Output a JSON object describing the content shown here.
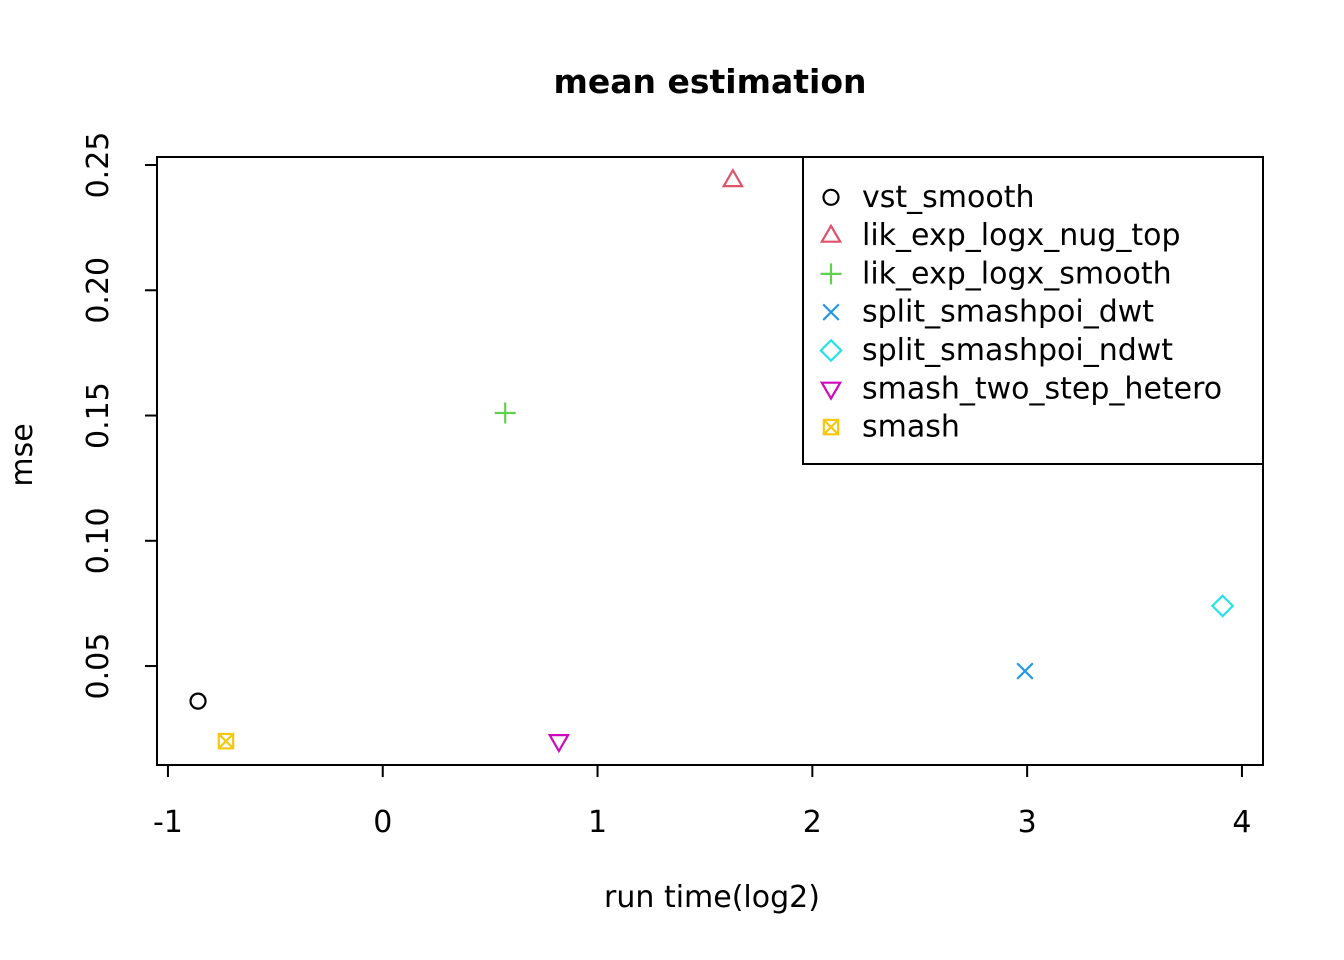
{
  "chart_data": {
    "type": "scatter",
    "title": "mean estimation",
    "xlabel": "run time(log2)",
    "ylabel": "mse",
    "xlim": [
      -1.051,
      4.098
    ],
    "ylim": [
      0.0105,
      0.2532
    ],
    "x_ticks": [
      -1,
      0,
      1,
      2,
      3,
      4
    ],
    "x_tick_labels": [
      "-1",
      "0",
      "1",
      "2",
      "3",
      "4"
    ],
    "y_ticks": [
      0.05,
      0.1,
      0.15,
      0.2,
      0.25
    ],
    "y_tick_labels": [
      "0.05",
      "0.10",
      "0.15",
      "0.20",
      "0.25"
    ],
    "grid": false,
    "legend_position": "top-right",
    "frame_color": "#000000",
    "background_color": "#ffffff",
    "series": [
      {
        "name": "vst_smooth",
        "marker": "circle",
        "color": "#000000",
        "points": [
          {
            "x": -0.86,
            "y": 0.036
          }
        ]
      },
      {
        "name": "lik_exp_logx_nug_top",
        "marker": "triangle-up",
        "color": "#DF536B",
        "points": [
          {
            "x": 1.63,
            "y": 0.244
          }
        ]
      },
      {
        "name": "lik_exp_logx_smooth",
        "marker": "plus",
        "color": "#61D04F",
        "points": [
          {
            "x": 0.57,
            "y": 0.151
          }
        ]
      },
      {
        "name": "split_smashpoi_dwt",
        "marker": "x",
        "color": "#2297E6",
        "points": [
          {
            "x": 2.99,
            "y": 0.048
          }
        ]
      },
      {
        "name": "split_smashpoi_ndwt",
        "marker": "diamond",
        "color": "#28E2E5",
        "points": [
          {
            "x": 3.91,
            "y": 0.074
          }
        ]
      },
      {
        "name": "smash_two_step_hetero",
        "marker": "triangle-down",
        "color": "#CD0BBC",
        "points": [
          {
            "x": 0.82,
            "y": 0.02
          }
        ]
      },
      {
        "name": "smash",
        "marker": "square-x",
        "color": "#F5C710",
        "points": [
          {
            "x": -0.73,
            "y": 0.02
          }
        ]
      }
    ]
  }
}
